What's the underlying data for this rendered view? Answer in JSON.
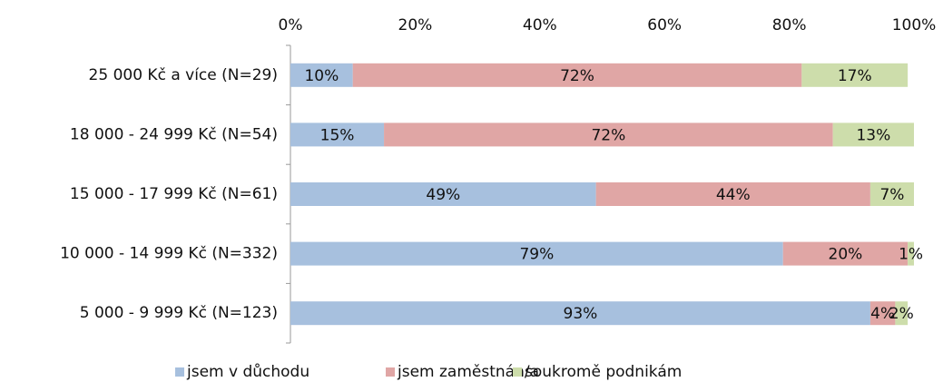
{
  "chart_data": {
    "type": "stacked_barh",
    "categories": [
      "25 000 Kč a více (N=29)",
      "18 000 - 24 999 Kč (N=54)",
      "15 000 - 17 999 Kč (N=61)",
      "10 000 - 14 999 Kč (N=332)",
      "5 000 - 9 999 Kč (N=123)"
    ],
    "series": [
      {
        "name": "jsem v důchodu",
        "color": "#a7c0de",
        "values": [
          10,
          15,
          49,
          79,
          93
        ]
      },
      {
        "name": "jsem zaměstnán/a",
        "color": "#e0a6a5",
        "values": [
          72,
          72,
          44,
          20,
          4
        ]
      },
      {
        "name": "soukromě podnikám",
        "color": "#cdddab",
        "values": [
          17,
          13,
          7,
          1,
          2
        ]
      }
    ],
    "value_labels": [
      [
        "10%",
        "15%",
        "49%",
        "79%",
        "93%"
      ],
      [
        "72%",
        "72%",
        "44%",
        "20%",
        "4%"
      ],
      [
        "17%",
        "13%",
        "7%",
        "1%",
        "2%"
      ]
    ],
    "xlim": [
      0,
      100
    ],
    "xticks": [
      {
        "value": 0,
        "label": "0%"
      },
      {
        "value": 20,
        "label": "20%"
      },
      {
        "value": 40,
        "label": "40%"
      },
      {
        "value": 60,
        "label": "60%"
      },
      {
        "value": 80,
        "label": "80%"
      },
      {
        "value": 100,
        "label": "100%"
      }
    ],
    "legend": "bottom"
  }
}
